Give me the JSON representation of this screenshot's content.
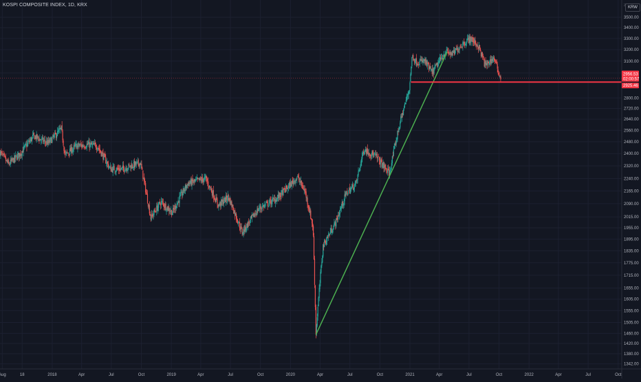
{
  "header": {
    "symbol_title": "KOSPI COMPOSITE INDEX, 1D, KRX",
    "currency": "KRW"
  },
  "price_axis": {
    "top_partial_label": "3580.00",
    "last_price": "2956.53",
    "countdown": "02:00:57",
    "line_price": "2925.46"
  },
  "colors": {
    "background": "#131722",
    "up": "#26a69a",
    "down": "#ef5350",
    "trendline": "#4caf50",
    "support_line": "#f23645"
  },
  "chart_data": {
    "type": "candlestick",
    "title": "KOSPI COMPOSITE INDEX, 1D, KRX",
    "currency": "KRW",
    "y_scale": "log",
    "ylim": [
      1320,
      3600
    ],
    "y_ticks": [
      3500,
      3400,
      3300,
      3200,
      3100,
      3000,
      2800,
      2720,
      2640,
      2560,
      2480,
      2400,
      2320,
      2240,
      2165,
      2090,
      2015,
      1955,
      1895,
      1835,
      1775,
      1715,
      1655,
      1605,
      1555,
      1505,
      1460,
      1420,
      1380,
      1342
    ],
    "y_tick_labels": [
      "3500.00",
      "3400.00",
      "3300.00",
      "3200.00",
      "3100.00",
      "3000.00",
      "2800.00",
      "2720.00",
      "2640.00",
      "2560.00",
      "2480.00",
      "2400.00",
      "2320.00",
      "2240.00",
      "2165.00",
      "2090.00",
      "2015.00",
      "1955.00",
      "1895.00",
      "1835.00",
      "1775.00",
      "1715.00",
      "1655.00",
      "1605.00",
      "1555.00",
      "1505.00",
      "1460.00",
      "1420.00",
      "1380.00",
      "1342.00"
    ],
    "x_ticks": [
      "2017-08-01",
      "2017-10-01",
      "2018-01-01",
      "2018-04-01",
      "2018-07-01",
      "2018-10-01",
      "2019-01-01",
      "2019-04-01",
      "2019-07-01",
      "2019-10-01",
      "2020-01-01",
      "2020-04-01",
      "2020-07-01",
      "2020-10-01",
      "2021-01-01",
      "2021-04-01",
      "2021-07-01",
      "2021-10-01",
      "2022-01-01",
      "2022-04-01",
      "2022-07-01",
      "2022-10-01"
    ],
    "x_tick_labels": [
      "Aug",
      "18",
      "2018",
      "Apr",
      "Jul",
      "Oct",
      "2019",
      "Apr",
      "Jul",
      "Oct",
      "2020",
      "Apr",
      "Jul",
      "Oct",
      "2021",
      "Apr",
      "Jul",
      "Oct",
      "2022",
      "Apr",
      "Jul",
      "Oct"
    ],
    "xlim": [
      "2017-07-25",
      "2022-10-12"
    ],
    "series": [
      {
        "kind": "close_path",
        "dates": [
          "2017-07-25",
          "2017-08-20",
          "2017-09-25",
          "2017-11-05",
          "2017-12-20",
          "2018-01-29",
          "2018-02-09",
          "2018-03-15",
          "2018-04-20",
          "2018-05-20",
          "2018-06-28",
          "2018-08-01",
          "2018-09-28",
          "2018-10-30",
          "2018-11-30",
          "2019-01-04",
          "2019-02-20",
          "2019-04-16",
          "2019-05-25",
          "2019-06-25",
          "2019-08-06",
          "2019-09-25",
          "2019-11-20",
          "2019-12-30",
          "2020-01-22",
          "2020-02-15",
          "2020-03-10",
          "2020-03-19",
          "2020-04-10",
          "2020-05-20",
          "2020-06-20",
          "2020-07-20",
          "2020-08-13",
          "2020-09-20",
          "2020-10-30",
          "2020-11-30",
          "2020-12-30",
          "2021-01-08",
          "2021-01-20",
          "2021-02-15",
          "2021-03-10",
          "2021-04-20",
          "2021-05-12",
          "2021-06-10",
          "2021-07-06",
          "2021-07-30",
          "2021-08-20",
          "2021-09-15",
          "2021-10-05",
          "2021-10-06"
        ],
        "close": [
          2410,
          2330,
          2400,
          2520,
          2470,
          2570,
          2390,
          2450,
          2460,
          2450,
          2300,
          2300,
          2340,
          2010,
          2100,
          2040,
          2210,
          2240,
          2080,
          2130,
          1930,
          2060,
          2120,
          2200,
          2250,
          2160,
          1960,
          1460,
          1860,
          1990,
          2150,
          2210,
          2430,
          2380,
          2270,
          2600,
          2870,
          3150,
          3090,
          3100,
          3000,
          3180,
          3160,
          3250,
          3300,
          3230,
          3060,
          3130,
          2960,
          2956.53
        ]
      }
    ],
    "lines": [
      {
        "name": "",
        "type": "trend",
        "from": [
          "2020-03-19",
          1455
        ],
        "to": [
          "2021-04-25",
          3180
        ]
      },
      {
        "name": "",
        "type": "horizontal",
        "from_date": "2021-01-04",
        "price": 2925.46
      }
    ]
  }
}
